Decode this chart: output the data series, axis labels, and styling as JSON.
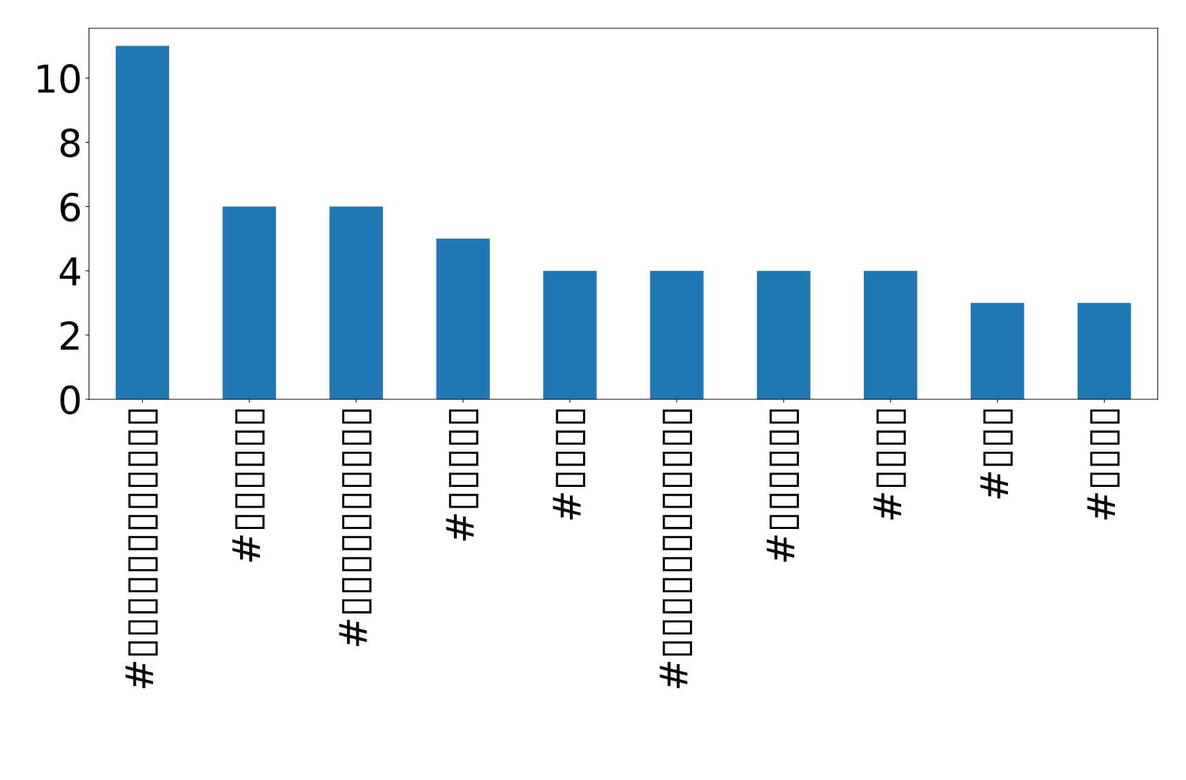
{
  "chart_data": {
    "type": "bar",
    "categories": [
      "#▯▯▯▯▯▯▯▯▯▯▯▯",
      "#▯▯▯▯▯▯",
      "#▯▯▯▯▯▯▯▯▯▯",
      "#▯▯▯▯▯",
      "#▯▯▯▯",
      "#▯▯▯▯▯▯▯▯▯▯▯▯",
      "#▯▯▯▯▯▯",
      "#▯▯▯▯",
      "#▯▯▯",
      "#▯▯▯▯"
    ],
    "values": [
      11,
      6,
      6,
      5,
      4,
      4,
      4,
      4,
      3,
      3
    ],
    "color": "#1f77b4",
    "ylim": [
      0,
      11.55
    ],
    "yticks": [
      0,
      2,
      4,
      6,
      8,
      10
    ],
    "grid": false,
    "legend": false
  }
}
